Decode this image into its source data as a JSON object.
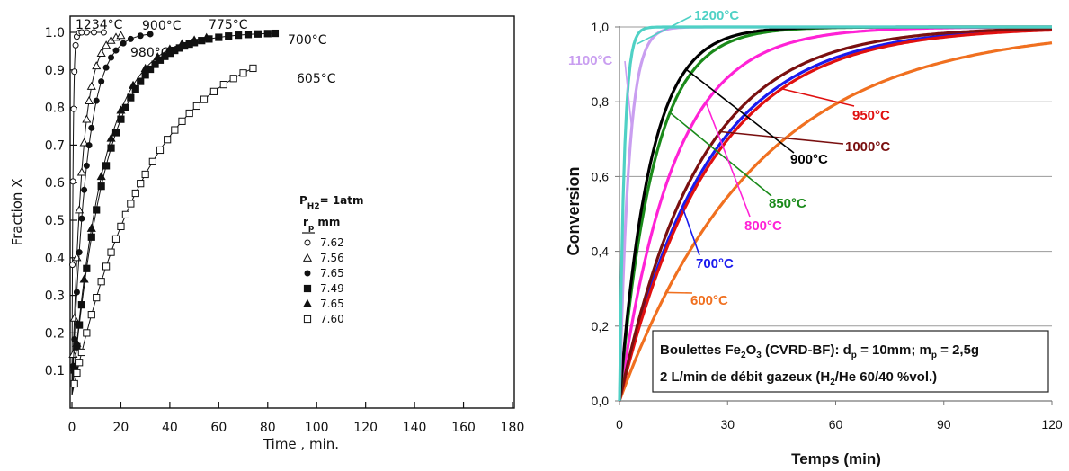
{
  "left_chart": {
    "chart_data": {
      "type": "scatter",
      "xlabel": "Time , min.",
      "ylabel": "Fraction X",
      "xlim": [
        0,
        180
      ],
      "ylim": [
        0,
        1.0
      ],
      "x_ticks": [
        "0",
        "20",
        "40",
        "60",
        "80",
        "100",
        "120",
        "140",
        "160",
        "180"
      ],
      "y_ticks": [
        "0.1",
        "0.2",
        "0.3",
        "0.4",
        "0.5",
        "0.6",
        "0.7",
        "0.8",
        "0.9",
        "1.0"
      ],
      "legend_title_pressure": "P",
      "legend_title_pressure_sub": "H2",
      "legend_title_pressure_value": "= 1atm",
      "legend_col_header": "r",
      "legend_col_header_sub": "p",
      "legend_col_unit": "mm",
      "series": [
        {
          "label": "1234°C",
          "rp": "7.62",
          "marker": "open-circle",
          "tau": 0.45,
          "x": [
            0.2,
            0.4,
            0.7,
            1,
            1.5,
            2,
            3,
            4,
            6,
            9,
            13
          ]
        },
        {
          "label": "980°C",
          "rp": "7.56",
          "marker": "open-triangle",
          "tau": 4.2,
          "x": [
            0.5,
            1,
            2,
            3,
            4,
            5,
            6,
            7,
            8,
            10,
            12,
            14,
            16,
            18,
            20
          ]
        },
        {
          "label": "900°C",
          "rp": "7.65",
          "marker": "filled-circle",
          "tau": 6.0,
          "x": [
            0.5,
            1,
            2,
            3,
            4,
            5,
            6,
            7,
            8,
            10,
            12,
            14,
            16,
            18,
            21,
            24,
            28,
            32
          ]
        },
        {
          "label": "700°C",
          "rp": "7.49",
          "marker": "filled-square",
          "tau": 14.0,
          "x": [
            1,
            2,
            3,
            4,
            6,
            8,
            10,
            12,
            14,
            16,
            18,
            20,
            22,
            24,
            26,
            28,
            30,
            32,
            34,
            36,
            38,
            40,
            42,
            44,
            46,
            48,
            50,
            53,
            56,
            60,
            64,
            68,
            72,
            76,
            80,
            83
          ]
        },
        {
          "label": "775°C",
          "rp": "7.65",
          "marker": "filled-triangle",
          "tau": 13.0,
          "x": [
            2,
            5,
            8,
            12,
            16,
            20,
            25,
            30,
            35,
            40,
            45,
            50,
            55
          ]
        },
        {
          "label": "605°C",
          "rp": "7.60",
          "marker": "open-square",
          "tau": 32.0,
          "x": [
            1,
            2,
            3,
            4,
            6,
            8,
            10,
            12,
            14,
            16,
            18,
            20,
            22,
            24,
            26,
            28,
            30,
            33,
            36,
            39,
            42,
            45,
            48,
            51,
            54,
            58,
            62,
            66,
            70,
            74
          ]
        }
      ]
    }
  },
  "right_chart": {
    "chart_data": {
      "type": "line",
      "xlabel": "Temps (min)",
      "ylabel": "Conversion",
      "xlim": [
        0,
        120
      ],
      "ylim": [
        0,
        1.0
      ],
      "x_ticks": [
        "0",
        "30",
        "60",
        "90",
        "120"
      ],
      "y_ticks": [
        "0,0",
        "0,2",
        "0,4",
        "0,6",
        "0,8",
        "1,0"
      ],
      "grid": true,
      "annotation_line1_pre": "Boulettes Fe",
      "annotation_line1_sub1": "2",
      "annotation_line1_mid1": "O",
      "annotation_line1_sub2": "3",
      "annotation_line1_mid2": " (CVRD-BF): d",
      "annotation_line1_sub3": "p",
      "annotation_line1_mid3": " = 10mm; m",
      "annotation_line1_sub4": "p",
      "annotation_line1_post": " = 2,5g",
      "annotation_line2_pre": "2 L/min de débit gazeux (H",
      "annotation_line2_sub1": "2",
      "annotation_line2_post": "/He 60/40 %vol.)",
      "series": [
        {
          "name": "1200°C",
          "color": "#4fd1c5",
          "tau": 1.3
        },
        {
          "name": "1100°C",
          "color": "#c99ef0",
          "tau": 2.6
        },
        {
          "name": "1000°C",
          "color": "#7a1010",
          "tau": 22.0
        },
        {
          "name": "950°C",
          "color": "#e01010",
          "tau": 25.0
        },
        {
          "name": "900°C",
          "color": "#000000",
          "tau": 8.5
        },
        {
          "name": "850°C",
          "color": "#1a8a1a",
          "tau": 9.5
        },
        {
          "name": "800°C",
          "color": "#ff22d6",
          "tau": 15.0
        },
        {
          "name": "700°C",
          "color": "#1a1aee",
          "tau": 24.0
        },
        {
          "name": "600°C",
          "color": "#f07020",
          "tau": 38.0
        }
      ]
    }
  }
}
